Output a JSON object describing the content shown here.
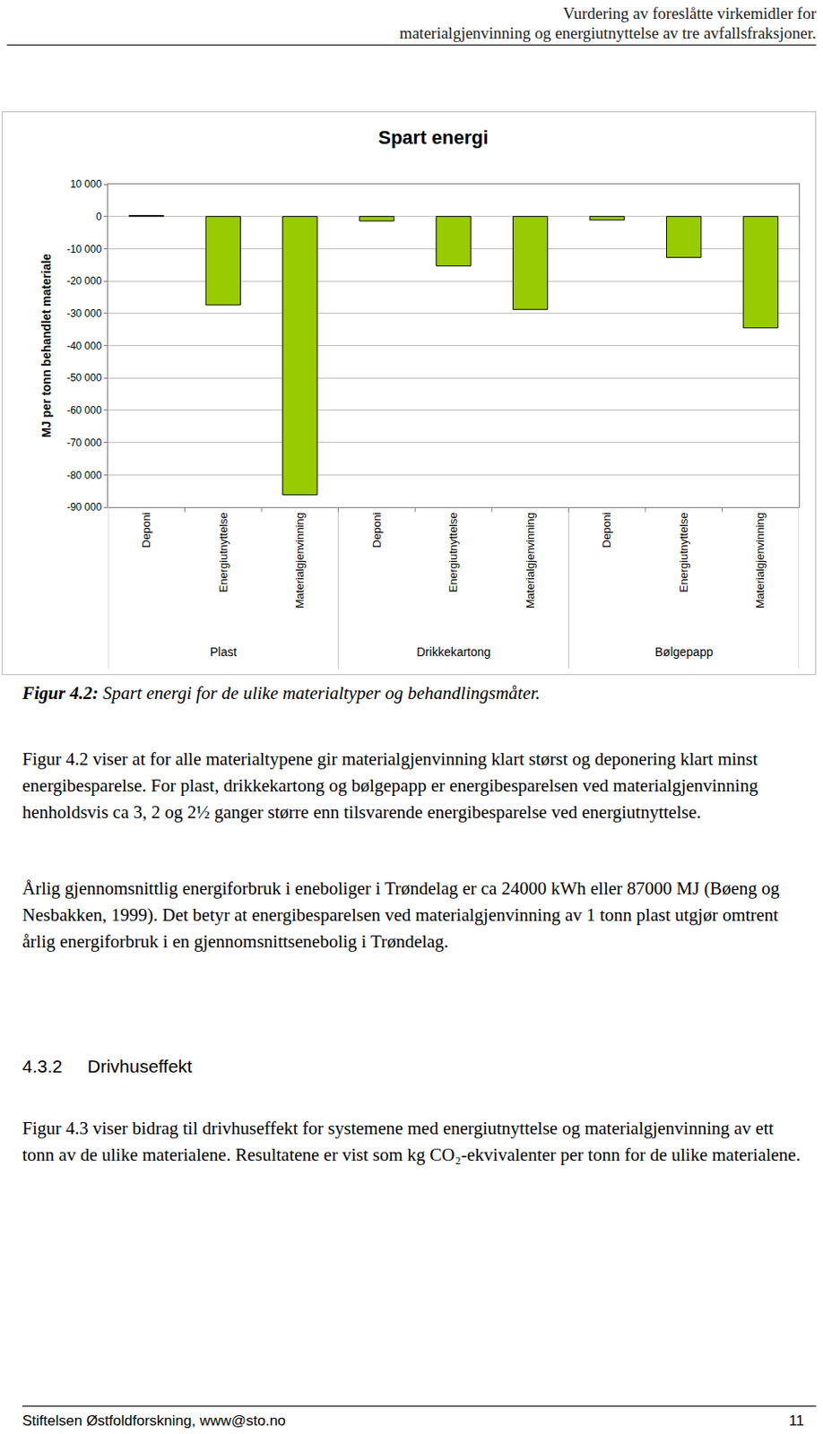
{
  "header": [
    "Vurdering av foreslåtte virkemidler for",
    "materialgjenvinning og energiutnyttelse av tre avfallsfraksjoner."
  ],
  "chart_data": {
    "type": "bar",
    "title": "Spart energi",
    "y_label": "MJ per tonn behandlet materiale",
    "categories": [
      "Deponi",
      "Energiutnyttelse",
      "Materialgjenvinning",
      "Deponi",
      "Energiutnyttelse",
      "Materialgjenvinning",
      "Deponi",
      "Energiutnyttelse",
      "Materialgjenvinning"
    ],
    "groups": [
      "Plast",
      "Plast",
      "Plast",
      "Drikkekartong",
      "Drikkekartong",
      "Drikkekartong",
      "Bølgepapp",
      "Bølgepapp",
      "Bølgepapp"
    ],
    "values": [
      300,
      -27400,
      -86200,
      -1400,
      -15300,
      -28800,
      -1100,
      -12700,
      -34500
    ],
    "color": "#99cc00",
    "ylim": [
      -90000,
      10000
    ],
    "yticks": [
      {
        "value": 10000,
        "label": "10 000"
      },
      0,
      {
        "value": -10000,
        "label": "-10 000"
      },
      {
        "value": -20000,
        "label": "-20 000"
      },
      {
        "value": -30000,
        "label": "-30 000"
      },
      {
        "value": -40000,
        "label": "-40 000"
      },
      {
        "value": -50000,
        "label": "-50 000"
      },
      {
        "value": -60000,
        "label": "-60 000"
      },
      {
        "value": -70000,
        "label": "-70 000"
      },
      {
        "value": -80000,
        "label": "-80 000"
      },
      {
        "value": -90000,
        "label": "-90 000"
      }
    ],
    "grid": true
  },
  "caption": {
    "label": "Figur 4.2:",
    "text": "Spart energi for de ulike materialtyper og behandlingsmåter."
  },
  "paragraphs": [
    "Figur 4.2 viser at for alle materialtypene gir materialgjenvinning klart størst og deponering klart minst energibesparelse. For plast, drikkekartong og bølgepapp er energibesparelsen ved materialgjenvinning henholdsvis ca 3, 2 og 2½  ganger større enn tilsvarende energibesparelse ved energiutnyttelse.",
    "Årlig gjennomsnittlig energiforbruk i eneboliger i Trøndelag er ca 24000 kWh eller 87000 MJ (Bøeng og Nesbakken, 1999). Det betyr at energibesparelsen ved materialgjenvinning av 1 tonn plast utgjør omtrent årlig energiforbruk i en gjennomsnittsenebolig i Trøndelag.",
    "Figur 4.3 viser bidrag til drivhuseffekt for systemene med energiutnyttelse og materialgjenvinning av ett tonn av de ulike materialene. Resultatene er vist som kg CO₂-ekvivalenter per tonn for de ulike materialene."
  ],
  "heading": {
    "number": "4.3.2",
    "text": "Drivhuseffekt"
  },
  "footer": {
    "left": "Stiftelsen Østfoldforskning, www@sto.no",
    "right": "11"
  }
}
